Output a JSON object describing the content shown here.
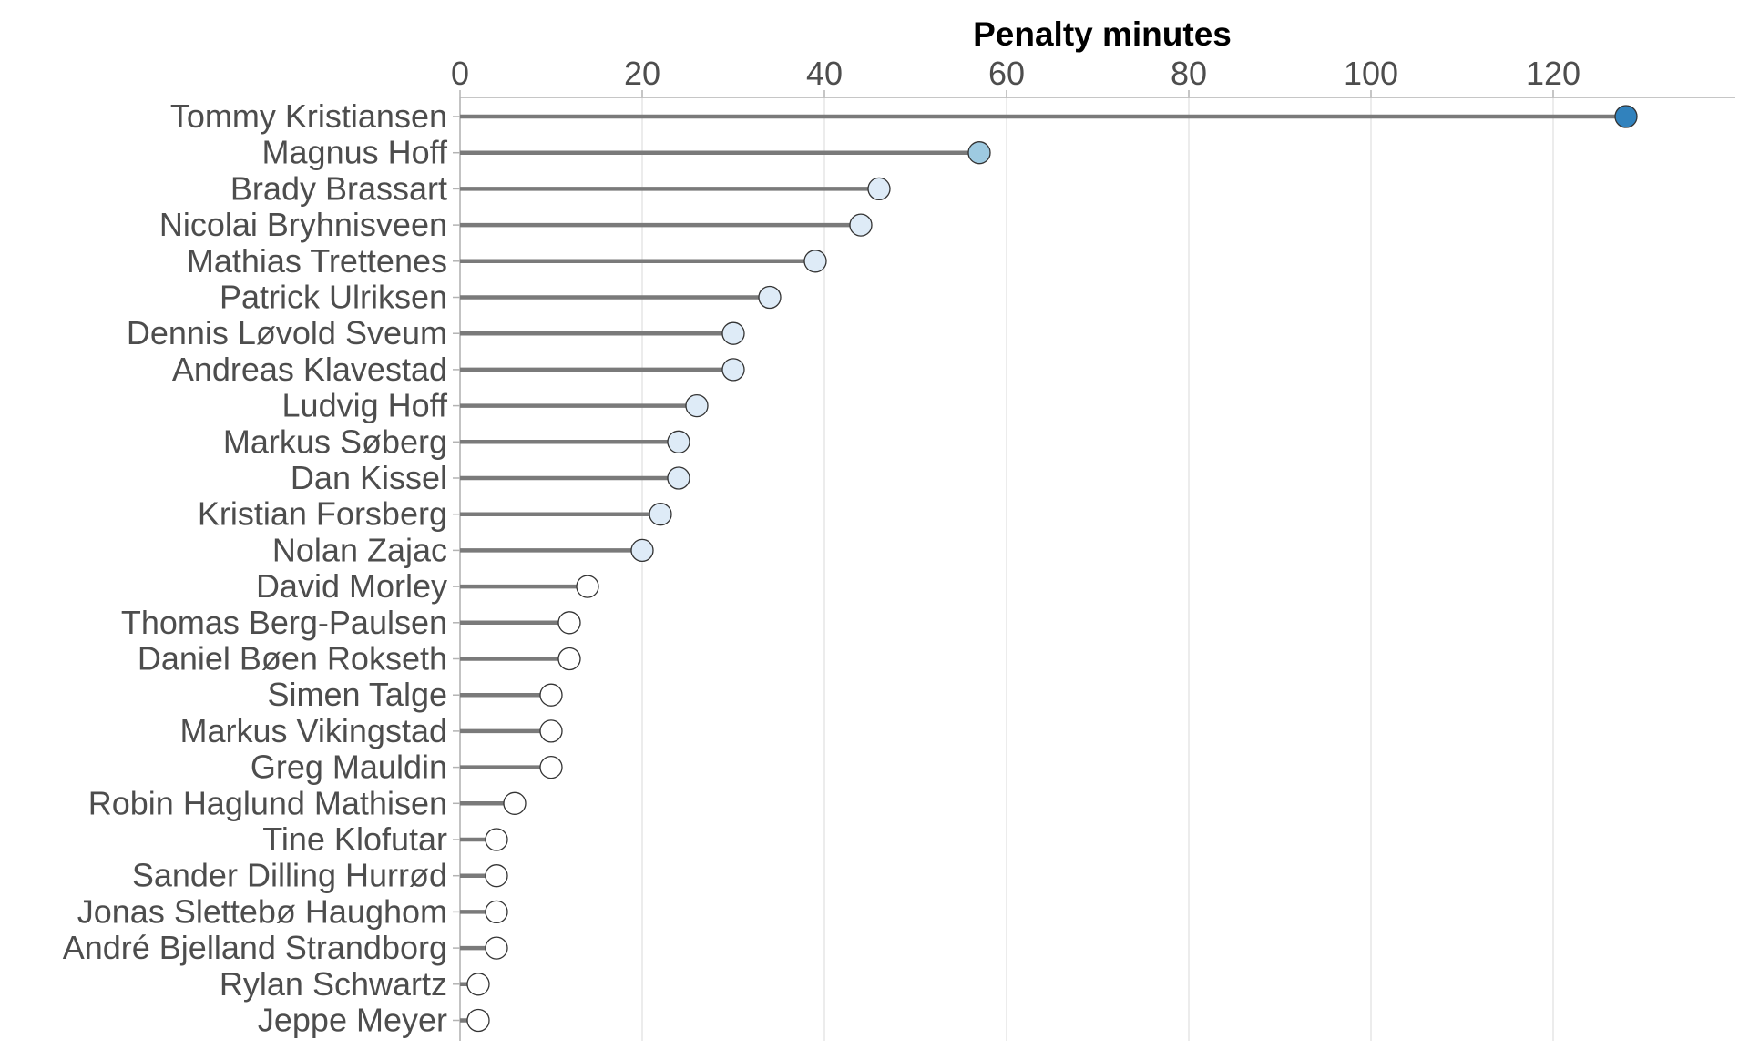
{
  "chart_data": {
    "type": "lollipop",
    "title": "",
    "xlabel": "Penalty minutes",
    "ylabel": "",
    "xlim": [
      0,
      140
    ],
    "x_ticks": [
      0,
      20,
      40,
      60,
      80,
      100,
      120
    ],
    "x_tick_labels": [
      "0",
      "20",
      "40",
      "60",
      "80",
      "100",
      "120"
    ],
    "x_axis_position": "top",
    "grid": "vertical",
    "legend": "none",
    "categories": [
      "Tommy Kristiansen",
      "Magnus Hoff",
      "Brady Brassart",
      "Nicolai Bryhnisveen",
      "Mathias Trettenes",
      "Patrick Ulriksen",
      "Dennis Løvold Sveum",
      "Andreas Klavestad",
      "Ludvig Hoff",
      "Markus Søberg",
      "Dan Kissel",
      "Kristian Forsberg",
      "Nolan Zajac",
      "David Morley",
      "Thomas Berg-Paulsen",
      "Daniel Bøen Rokseth",
      "Simen Talge",
      "Markus Vikingstad",
      "Greg Mauldin",
      "Robin Haglund Mathisen",
      "Tine Klofutar",
      "Sander Dilling Hurrød",
      "Jonas Slettebø Haughom",
      "André Bjelland Strandborg",
      "Rylan Schwartz",
      "Jeppe Meyer"
    ],
    "values": [
      128,
      57,
      46,
      44,
      39,
      34,
      30,
      30,
      26,
      24,
      24,
      22,
      20,
      14,
      12,
      12,
      10,
      10,
      10,
      6,
      4,
      4,
      4,
      4,
      2,
      2
    ],
    "colors": {
      "stem": "#7a7a7a",
      "gridline": "#e5e5e5",
      "axis": "#b3b3b3",
      "point_outline": "#333333",
      "point_scale": [
        "#ffffff",
        "#deebf7",
        "#9ecae1",
        "#3182bd"
      ]
    }
  }
}
